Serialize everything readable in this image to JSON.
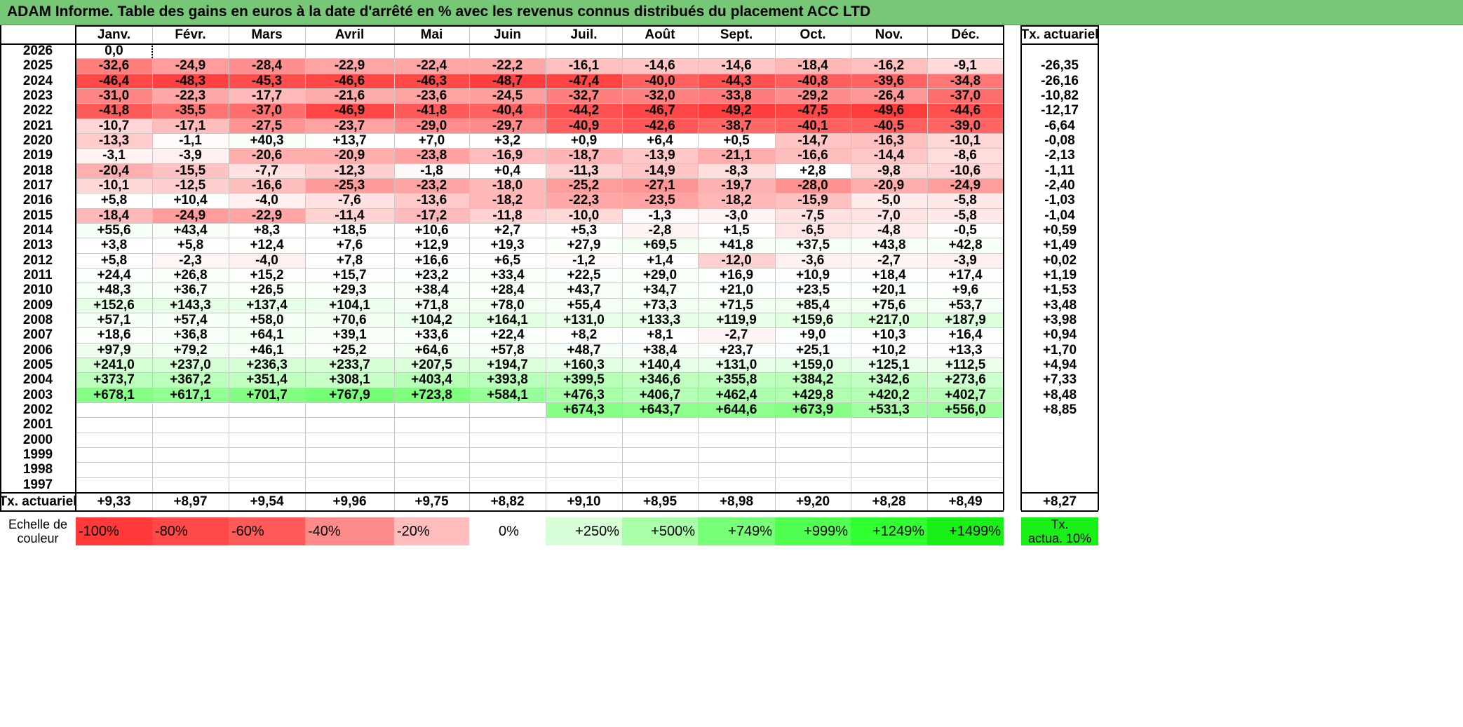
{
  "title": "ADAM Informe. Table des gains en euros à la date d'arrêté en % avec les revenus connus distribués du placement ACC LTD",
  "months": [
    "Janv.",
    "Févr.",
    "Mars",
    "Avril",
    "Mai",
    "Juin",
    "Juil.",
    "Août",
    "Sept.",
    "Oct.",
    "Nov.",
    "Déc."
  ],
  "rate_header": "Tx. actuariel",
  "rows": [
    {
      "year": "2026",
      "values": [
        "0,0",
        "",
        "",
        "",
        "",
        "",
        "",
        "",
        "",
        "",
        "",
        ""
      ],
      "rate": ""
    },
    {
      "year": "2025",
      "values": [
        "-32,6",
        "-24,9",
        "-28,4",
        "-22,9",
        "-22,4",
        "-22,2",
        "-16,1",
        "-14,6",
        "-14,6",
        "-18,4",
        "-16,2",
        "-9,1"
      ],
      "rate": "-26,35"
    },
    {
      "year": "2024",
      "values": [
        "-46,4",
        "-48,3",
        "-45,3",
        "-46,6",
        "-46,3",
        "-48,7",
        "-47,4",
        "-40,0",
        "-44,3",
        "-40,8",
        "-39,6",
        "-34,8"
      ],
      "rate": "-26,16"
    },
    {
      "year": "2023",
      "values": [
        "-31,0",
        "-22,3",
        "-17,7",
        "-21,6",
        "-23,6",
        "-24,5",
        "-32,7",
        "-32,0",
        "-33,8",
        "-29,2",
        "-26,4",
        "-37,0"
      ],
      "rate": "-10,82"
    },
    {
      "year": "2022",
      "values": [
        "-41,8",
        "-35,5",
        "-37,0",
        "-46,9",
        "-41,8",
        "-40,4",
        "-44,2",
        "-46,7",
        "-49,2",
        "-47,5",
        "-49,6",
        "-44,6"
      ],
      "rate": "-12,17"
    },
    {
      "year": "2021",
      "values": [
        "-10,7",
        "-17,1",
        "-27,5",
        "-23,7",
        "-29,0",
        "-29,7",
        "-40,9",
        "-42,6",
        "-38,7",
        "-40,1",
        "-40,5",
        "-39,0"
      ],
      "rate": "-6,64"
    },
    {
      "year": "2020",
      "values": [
        "-13,3",
        "-1,1",
        "+40,3",
        "+13,7",
        "+7,0",
        "+3,2",
        "+0,9",
        "+6,4",
        "+0,5",
        "-14,7",
        "-16,3",
        "-10,1"
      ],
      "rate": "-0,08"
    },
    {
      "year": "2019",
      "values": [
        "-3,1",
        "-3,9",
        "-20,6",
        "-20,9",
        "-23,8",
        "-16,9",
        "-18,7",
        "-13,9",
        "-21,1",
        "-16,6",
        "-14,4",
        "-8,6"
      ],
      "rate": "-2,13"
    },
    {
      "year": "2018",
      "values": [
        "-20,4",
        "-15,5",
        "-7,7",
        "-12,3",
        "-1,8",
        "+0,4",
        "-11,3",
        "-14,9",
        "-8,3",
        "+2,8",
        "-9,8",
        "-10,6"
      ],
      "rate": "-1,11"
    },
    {
      "year": "2017",
      "values": [
        "-10,1",
        "-12,5",
        "-16,6",
        "-25,3",
        "-23,2",
        "-18,0",
        "-25,2",
        "-27,1",
        "-19,7",
        "-28,0",
        "-20,9",
        "-24,9"
      ],
      "rate": "-2,40"
    },
    {
      "year": "2016",
      "values": [
        "+5,8",
        "+10,4",
        "-4,0",
        "-7,6",
        "-13,6",
        "-18,2",
        "-22,3",
        "-23,5",
        "-18,2",
        "-15,9",
        "-5,0",
        "-5,8"
      ],
      "rate": "-1,03"
    },
    {
      "year": "2015",
      "values": [
        "-18,4",
        "-24,9",
        "-22,9",
        "-11,4",
        "-17,2",
        "-11,8",
        "-10,0",
        "-1,3",
        "-3,0",
        "-7,5",
        "-7,0",
        "-5,8"
      ],
      "rate": "-1,04"
    },
    {
      "year": "2014",
      "values": [
        "+55,6",
        "+43,4",
        "+8,3",
        "+18,5",
        "+10,6",
        "+2,7",
        "+5,3",
        "-2,8",
        "+1,5",
        "-6,5",
        "-4,8",
        "-0,5"
      ],
      "rate": "+0,59"
    },
    {
      "year": "2013",
      "values": [
        "+3,8",
        "+5,8",
        "+12,4",
        "+7,6",
        "+12,9",
        "+19,3",
        "+27,9",
        "+69,5",
        "+41,8",
        "+37,5",
        "+43,8",
        "+42,8"
      ],
      "rate": "+1,49"
    },
    {
      "year": "2012",
      "values": [
        "+5,8",
        "-2,3",
        "-4,0",
        "+7,8",
        "+16,6",
        "+6,5",
        "-1,2",
        "+1,4",
        "-12,0",
        "-3,6",
        "-2,7",
        "-3,9"
      ],
      "rate": "+0,02"
    },
    {
      "year": "2011",
      "values": [
        "+24,4",
        "+26,8",
        "+15,2",
        "+15,7",
        "+23,2",
        "+33,4",
        "+22,5",
        "+29,0",
        "+16,9",
        "+10,9",
        "+18,4",
        "+17,4"
      ],
      "rate": "+1,19"
    },
    {
      "year": "2010",
      "values": [
        "+48,3",
        "+36,7",
        "+26,5",
        "+29,3",
        "+38,4",
        "+28,4",
        "+43,7",
        "+34,7",
        "+21,0",
        "+23,5",
        "+20,1",
        "+9,6"
      ],
      "rate": "+1,53"
    },
    {
      "year": "2009",
      "values": [
        "+152,6",
        "+143,3",
        "+137,4",
        "+104,1",
        "+71,8",
        "+78,0",
        "+55,4",
        "+73,3",
        "+71,5",
        "+85,4",
        "+75,6",
        "+53,7"
      ],
      "rate": "+3,48"
    },
    {
      "year": "2008",
      "values": [
        "+57,1",
        "+57,4",
        "+58,0",
        "+70,6",
        "+104,2",
        "+164,1",
        "+131,0",
        "+133,3",
        "+119,9",
        "+159,6",
        "+217,0",
        "+187,9"
      ],
      "rate": "+3,98"
    },
    {
      "year": "2007",
      "values": [
        "+18,6",
        "+36,8",
        "+64,1",
        "+39,1",
        "+33,6",
        "+22,4",
        "+8,2",
        "+8,1",
        "-2,7",
        "+9,0",
        "+10,3",
        "+16,4"
      ],
      "rate": "+0,94"
    },
    {
      "year": "2006",
      "values": [
        "+97,9",
        "+79,2",
        "+46,1",
        "+25,2",
        "+64,6",
        "+57,8",
        "+48,7",
        "+38,4",
        "+23,7",
        "+25,1",
        "+10,2",
        "+13,3"
      ],
      "rate": "+1,70"
    },
    {
      "year": "2005",
      "values": [
        "+241,0",
        "+237,0",
        "+236,3",
        "+233,7",
        "+207,5",
        "+194,7",
        "+160,3",
        "+140,4",
        "+131,0",
        "+159,0",
        "+125,1",
        "+112,5"
      ],
      "rate": "+4,94"
    },
    {
      "year": "2004",
      "values": [
        "+373,7",
        "+367,2",
        "+351,4",
        "+308,1",
        "+403,4",
        "+393,8",
        "+399,5",
        "+346,6",
        "+355,8",
        "+384,2",
        "+342,6",
        "+273,6"
      ],
      "rate": "+7,33"
    },
    {
      "year": "2003",
      "values": [
        "+678,1",
        "+617,1",
        "+701,7",
        "+767,9",
        "+723,8",
        "+584,1",
        "+476,3",
        "+406,7",
        "+462,4",
        "+429,8",
        "+420,2",
        "+402,7"
      ],
      "rate": "+8,48"
    },
    {
      "year": "2002",
      "values": [
        "",
        "",
        "",
        "",
        "",
        "",
        "+674,3",
        "+643,7",
        "+644,6",
        "+673,9",
        "+531,3",
        "+556,0"
      ],
      "rate": "+8,85"
    },
    {
      "year": "2001",
      "values": [
        "",
        "",
        "",
        "",
        "",
        "",
        "",
        "",
        "",
        "",
        "",
        ""
      ],
      "rate": ""
    },
    {
      "year": "2000",
      "values": [
        "",
        "",
        "",
        "",
        "",
        "",
        "",
        "",
        "",
        "",
        "",
        ""
      ],
      "rate": ""
    },
    {
      "year": "1999",
      "values": [
        "",
        "",
        "",
        "",
        "",
        "",
        "",
        "",
        "",
        "",
        "",
        ""
      ],
      "rate": ""
    },
    {
      "year": "1998",
      "values": [
        "",
        "",
        "",
        "",
        "",
        "",
        "",
        "",
        "",
        "",
        "",
        ""
      ],
      "rate": ""
    },
    {
      "year": "1997",
      "values": [
        "",
        "",
        "",
        "",
        "",
        "",
        "",
        "",
        "",
        "",
        "",
        ""
      ],
      "rate": ""
    }
  ],
  "totals": {
    "label": "Tx. actuariel",
    "values": [
      "+9,33",
      "+8,97",
      "+9,54",
      "+9,96",
      "+9,75",
      "+8,82",
      "+9,10",
      "+8,95",
      "+8,98",
      "+9,20",
      "+8,28",
      "+8,49"
    ],
    "rate": "+8,27"
  },
  "legend": {
    "label_line1": "Echelle de",
    "label_line2": "couleur",
    "items": [
      {
        "text": "-100%",
        "color": "#ff3838"
      },
      {
        "text": "-80%",
        "color": "#ff4848"
      },
      {
        "text": "-60%",
        "color": "#ff5a5a"
      },
      {
        "text": "-40%",
        "color": "#ff8a8a"
      },
      {
        "text": "-20%",
        "color": "#ffbcbc"
      },
      {
        "text": "0%",
        "color": "#ffffff"
      },
      {
        "text": "+250%",
        "color": "#d8ffd8"
      },
      {
        "text": "+500%",
        "color": "#a8ffa8"
      },
      {
        "text": "+749%",
        "color": "#78ff78"
      },
      {
        "text": "+999%",
        "color": "#50ff50"
      },
      {
        "text": "+1249%",
        "color": "#30ff30"
      },
      {
        "text": "+1499%",
        "color": "#18f018"
      }
    ],
    "rate_line1": "Tx.",
    "rate_line2": "actua. 10%",
    "rate_color": "#18f018"
  },
  "colors": {
    "title_bar": "#76c776",
    "negative_full": "#ff3a3a",
    "positive_full": "#30ff30"
  }
}
